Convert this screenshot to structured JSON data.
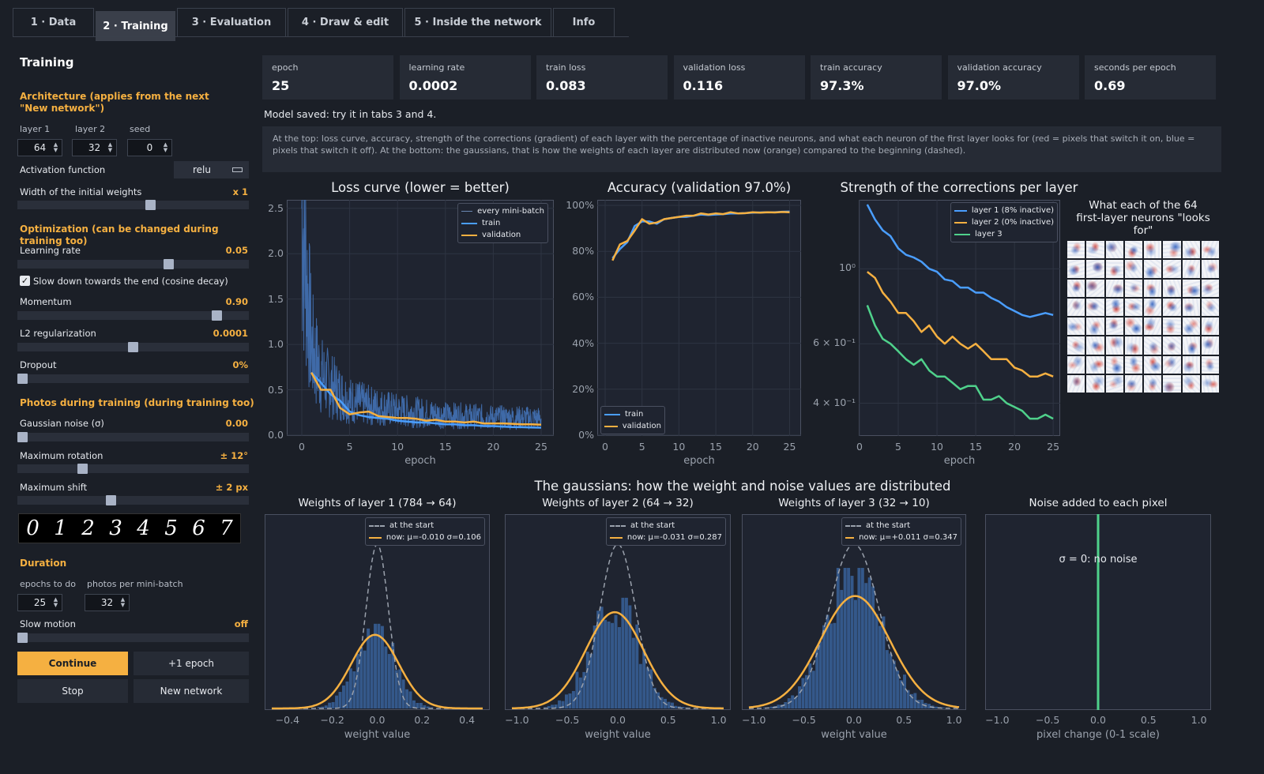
{
  "tabs": [
    {
      "label": "1 · Data",
      "active": false
    },
    {
      "label": "2 · Training",
      "active": true
    },
    {
      "label": "3 · Evaluation",
      "active": false
    },
    {
      "label": "4 · Draw & edit",
      "active": false
    },
    {
      "label": "5 · Inside the network",
      "active": false
    },
    {
      "label": "Info",
      "active": false
    }
  ],
  "sidebar": {
    "title": "Training",
    "architecture": {
      "heading": "Architecture  (applies from the next \"New network\")",
      "layer1_label": "layer 1",
      "layer1_value": "64",
      "layer2_label": "layer 2",
      "layer2_value": "32",
      "seed_label": "seed",
      "seed_value": "0",
      "activation_label": "Activation function",
      "activation_value": "relu",
      "width_label": "Width of the initial weights",
      "width_value": "x 1",
      "width_level": 0.58
    },
    "optimization": {
      "heading": "Optimization  (can be changed during training too)",
      "lr_label": "Learning rate",
      "lr_value": "0.05",
      "lr_level": 0.66,
      "cosine_label": "Slow down towards the end (cosine decay)",
      "cosine_checked": true,
      "momentum_label": "Momentum",
      "momentum_value": "0.90",
      "momentum_level": 0.88,
      "l2_label": "L2 regularization",
      "l2_value": "0.0001",
      "l2_level": 0.5,
      "dropout_label": "Dropout",
      "dropout_value": "0%",
      "dropout_level": 0
    },
    "photos": {
      "heading": "Photos during training  (during training too)",
      "noise_label": "Gaussian noise (σ)",
      "noise_value": "0.00",
      "noise_level": 0,
      "rotation_label": "Maximum rotation",
      "rotation_value": "± 12°",
      "rotation_level": 0.27,
      "shift_label": "Maximum shift",
      "shift_value": "± 2 px",
      "shift_level": 0.4,
      "digits": [
        "0",
        "1",
        "2",
        "3",
        "4",
        "5",
        "6",
        "7"
      ]
    },
    "duration": {
      "heading": "Duration",
      "epochs_label": "epochs to do",
      "epochs_value": "25",
      "batch_label": "photos per mini-batch",
      "batch_value": "32",
      "slowmo_label": "Slow motion",
      "slowmo_value": "off",
      "slowmo_level": 0
    },
    "buttons": {
      "continue": "Continue",
      "plus_epoch": "+1 epoch",
      "stop": "Stop",
      "new_network": "New network"
    }
  },
  "metrics": [
    {
      "label": "epoch",
      "value": "25"
    },
    {
      "label": "learning rate",
      "value": "0.0002"
    },
    {
      "label": "train loss",
      "value": "0.083"
    },
    {
      "label": "validation loss",
      "value": "0.116"
    },
    {
      "label": "train accuracy",
      "value": "97.3%"
    },
    {
      "label": "validation accuracy",
      "value": "97.0%"
    },
    {
      "label": "seconds per epoch",
      "value": "0.69"
    }
  ],
  "status": "Model saved: try it in tabs 3 and 4.",
  "info": "At the top: loss curve, accuracy, strength of the corrections (gradient) of each layer with the percentage of inactive neurons, and what each neuron of the first layer looks for (red = pixels that switch it on, blue = pixels that switch it off). At the bottom: the gaussians, that is how the weights of each layer are distributed now (orange) compared to the beginning (dashed).",
  "colors": {
    "orange": "#f5b041",
    "blue": "#4a9eff",
    "green": "#4fd18b",
    "hist": "#34588a",
    "panel": "#1f2430"
  },
  "gauss_heading": "The gaussians: how the weight and noise values are distributed",
  "neurons_title": "What each of the 64 first-layer neurons \"looks for\"",
  "chart_data": [
    {
      "type": "line",
      "title": "Loss curve (lower = better)",
      "xlabel": "epoch",
      "ylabel": "",
      "xlim": [
        0,
        25
      ],
      "ylim": [
        0,
        2.55
      ],
      "xticks": [
        "0",
        "5",
        "10",
        "15",
        "20",
        "25"
      ],
      "yticks": [
        "0.0",
        "0.5",
        "1.0",
        "1.5",
        "2.0",
        "2.5"
      ],
      "legend": "top-right",
      "series": [
        {
          "name": "every mini-batch",
          "style": "band",
          "x": [
            0,
            1,
            2,
            3,
            4,
            5,
            7,
            10,
            15,
            20,
            25
          ],
          "y": [
            2.3,
            0.9,
            0.6,
            0.5,
            0.42,
            0.35,
            0.3,
            0.25,
            0.2,
            0.18,
            0.17
          ]
        },
        {
          "name": "train",
          "x": [
            1,
            2,
            3,
            4,
            5,
            6,
            7,
            8,
            9,
            10,
            11,
            12,
            13,
            14,
            15,
            16,
            17,
            18,
            19,
            20,
            21,
            22,
            23,
            24,
            25
          ],
          "y": [
            0.69,
            0.58,
            0.45,
            0.38,
            0.26,
            0.22,
            0.2,
            0.19,
            0.18,
            0.16,
            0.15,
            0.14,
            0.14,
            0.13,
            0.12,
            0.12,
            0.11,
            0.11,
            0.1,
            0.1,
            0.095,
            0.09,
            0.088,
            0.085,
            0.083
          ]
        },
        {
          "name": "validation",
          "x": [
            1,
            2,
            3,
            4,
            5,
            6,
            7,
            8,
            9,
            10,
            11,
            12,
            13,
            14,
            15,
            16,
            17,
            18,
            19,
            20,
            21,
            22,
            23,
            24,
            25
          ],
          "y": [
            0.69,
            0.5,
            0.5,
            0.3,
            0.23,
            0.25,
            0.26,
            0.21,
            0.2,
            0.19,
            0.19,
            0.18,
            0.16,
            0.17,
            0.15,
            0.15,
            0.14,
            0.15,
            0.13,
            0.13,
            0.13,
            0.125,
            0.12,
            0.12,
            0.116
          ]
        }
      ]
    },
    {
      "type": "line",
      "title": "Accuracy (validation 97.0%)",
      "xlabel": "epoch",
      "ylabel": "",
      "xlim": [
        0,
        25.7
      ],
      "ylim": [
        0,
        1.0
      ],
      "xticks": [
        "0",
        "5",
        "10",
        "15",
        "20",
        "25"
      ],
      "yticks": [
        "0%",
        "20%",
        "40%",
        "60%",
        "80%",
        "100%"
      ],
      "legend": "bottom-left",
      "series": [
        {
          "name": "train",
          "x": [
            1,
            2,
            3,
            4,
            5,
            6,
            7,
            8,
            9,
            10,
            11,
            12,
            13,
            14,
            15,
            16,
            17,
            18,
            19,
            20,
            21,
            22,
            23,
            24,
            25
          ],
          "y": [
            0.77,
            0.81,
            0.84,
            0.91,
            0.93,
            0.93,
            0.92,
            0.94,
            0.945,
            0.95,
            0.95,
            0.955,
            0.96,
            0.958,
            0.96,
            0.962,
            0.965,
            0.965,
            0.966,
            0.968,
            0.969,
            0.97,
            0.97,
            0.972,
            0.973
          ]
        },
        {
          "name": "validation",
          "x": [
            1,
            2,
            3,
            4,
            5,
            6,
            7,
            8,
            9,
            10,
            11,
            12,
            13,
            14,
            15,
            16,
            17,
            18,
            19,
            20,
            21,
            22,
            23,
            24,
            25
          ],
          "y": [
            0.76,
            0.83,
            0.845,
            0.89,
            0.94,
            0.92,
            0.925,
            0.94,
            0.945,
            0.95,
            0.955,
            0.955,
            0.965,
            0.96,
            0.965,
            0.962,
            0.97,
            0.965,
            0.966,
            0.97,
            0.968,
            0.97,
            0.969,
            0.971,
            0.97
          ]
        }
      ]
    },
    {
      "type": "line",
      "title": "Strength of the corrections per layer",
      "xlabel": "epoch",
      "ylabel": "",
      "log_scale_y": true,
      "xlim": [
        0,
        25.7
      ],
      "ylim": [
        0.32,
        1.6
      ],
      "xticks": [
        "0",
        "5",
        "10",
        "15",
        "20",
        "25"
      ],
      "yticks": [
        {
          "label": "10^0",
          "value": 1.0
        },
        {
          "label": "6×10^-1",
          "value": 0.6
        },
        {
          "label": "4×10^-1",
          "value": 0.4
        }
      ],
      "legend": "top-right",
      "series": [
        {
          "name": "layer 1 (8% inactive)",
          "x": [
            1,
            2,
            3,
            4,
            5,
            6,
            7,
            8,
            9,
            10,
            11,
            12,
            13,
            14,
            15,
            16,
            17,
            18,
            19,
            20,
            21,
            22,
            23,
            24,
            25
          ],
          "y": [
            1.55,
            1.4,
            1.3,
            1.25,
            1.15,
            1.1,
            1.08,
            1.05,
            1.0,
            0.98,
            0.93,
            0.92,
            0.88,
            0.88,
            0.85,
            0.85,
            0.82,
            0.8,
            0.77,
            0.75,
            0.73,
            0.72,
            0.73,
            0.74,
            0.73
          ]
        },
        {
          "name": "layer 2 (0% inactive)",
          "x": [
            1,
            2,
            3,
            4,
            5,
            6,
            7,
            8,
            9,
            10,
            11,
            12,
            13,
            14,
            15,
            16,
            17,
            18,
            19,
            20,
            21,
            22,
            23,
            24,
            25
          ],
          "y": [
            0.98,
            0.94,
            0.85,
            0.8,
            0.74,
            0.74,
            0.7,
            0.65,
            0.68,
            0.63,
            0.6,
            0.63,
            0.6,
            0.58,
            0.6,
            0.57,
            0.54,
            0.54,
            0.54,
            0.51,
            0.5,
            0.48,
            0.48,
            0.49,
            0.48
          ]
        },
        {
          "name": "layer 3",
          "x": [
            1,
            2,
            3,
            4,
            5,
            6,
            7,
            8,
            9,
            10,
            11,
            12,
            13,
            14,
            15,
            16,
            17,
            18,
            19,
            20,
            21,
            22,
            23,
            24,
            25
          ],
          "y": [
            0.78,
            0.68,
            0.62,
            0.6,
            0.57,
            0.54,
            0.52,
            0.54,
            0.5,
            0.48,
            0.48,
            0.46,
            0.44,
            0.45,
            0.45,
            0.41,
            0.41,
            0.42,
            0.4,
            0.39,
            0.38,
            0.36,
            0.36,
            0.37,
            0.36
          ]
        }
      ]
    },
    {
      "type": "histogram",
      "title": "Weights of layer 1  (784 → 64)",
      "xlabel": "weight value",
      "xlim": [
        -0.47,
        0.47
      ],
      "xticks": [
        "−0.4",
        "−0.2",
        "0.0",
        "0.2",
        "0.4"
      ],
      "xtick_values": [
        -0.4,
        -0.2,
        0,
        0.2,
        0.4
      ],
      "legend": "top-right",
      "start_sigma": 0.05,
      "now_mu": -0.01,
      "now_sigma": 0.106,
      "series": [
        {
          "name": "at the start"
        },
        {
          "name": "now: μ=-0.010  σ=0.106"
        }
      ]
    },
    {
      "type": "histogram",
      "title": "Weights of layer 2  (64 → 32)",
      "xlabel": "weight value",
      "xlim": [
        -1.05,
        1.05
      ],
      "xticks": [
        "−1.0",
        "−0.5",
        "0.0",
        "0.5",
        "1.0"
      ],
      "xtick_values": [
        -1,
        -0.5,
        0,
        0.5,
        1
      ],
      "legend": "top-right",
      "start_sigma": 0.177,
      "now_mu": -0.031,
      "now_sigma": 0.287,
      "series": [
        {
          "name": "at the start"
        },
        {
          "name": "now: μ=-0.031  σ=0.287"
        }
      ]
    },
    {
      "type": "histogram",
      "title": "Weights of layer 3  (32 → 10)",
      "xlabel": "weight value",
      "xlim": [
        -1.05,
        1.05
      ],
      "xticks": [
        "−1.0",
        "−0.5",
        "0.0",
        "0.5",
        "1.0"
      ],
      "xtick_values": [
        -1,
        -0.5,
        0,
        0.5,
        1
      ],
      "legend": "top-right",
      "start_sigma": 0.25,
      "now_mu": 0.011,
      "now_sigma": 0.347,
      "series": [
        {
          "name": "at the start"
        },
        {
          "name": "now: μ=+0.011  σ=0.347"
        }
      ]
    },
    {
      "type": "line",
      "title": "Noise added to each pixel",
      "xlabel": "pixel change (0-1 scale)",
      "xlim": [
        -1.05,
        1.05
      ],
      "xticks": [
        "−1.0",
        "−0.5",
        "0.0",
        "0.5",
        "1.0"
      ],
      "xtick_values": [
        -1,
        -0.5,
        0,
        0.5,
        1
      ],
      "annotation": "σ = 0: no noise",
      "vline": 0
    }
  ]
}
